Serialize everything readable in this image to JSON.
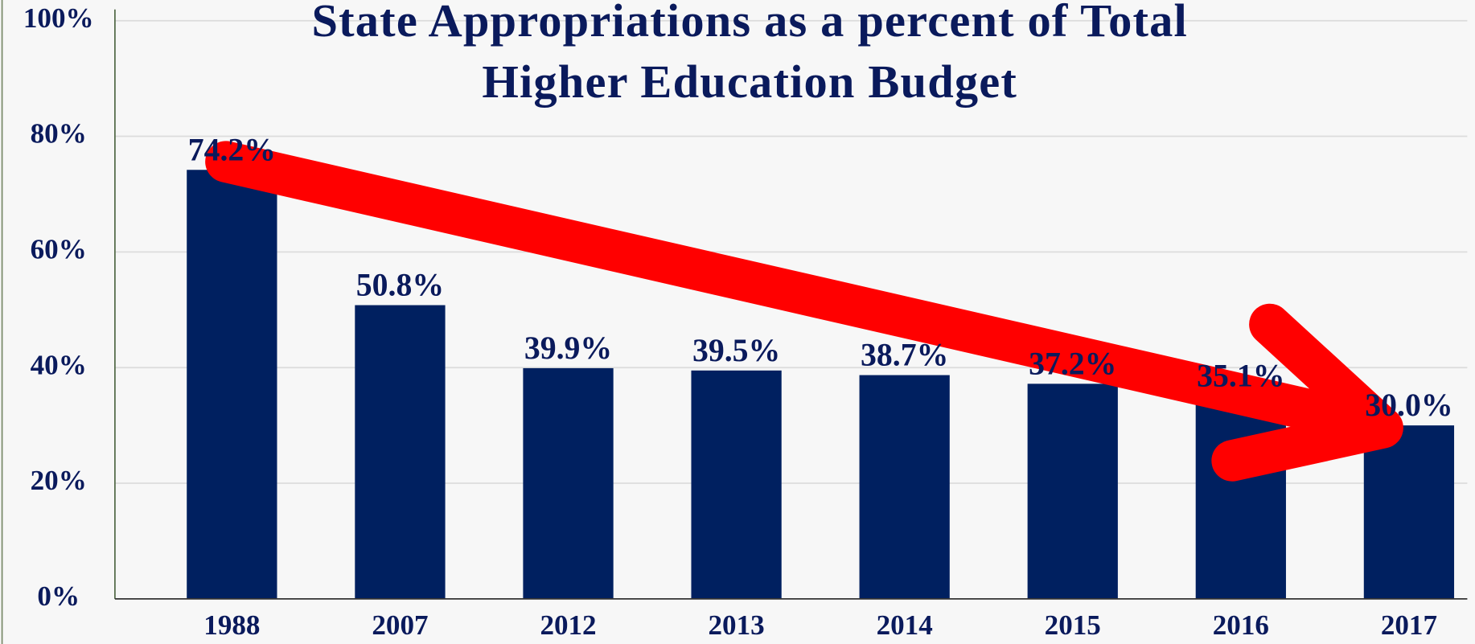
{
  "chart_data": {
    "type": "bar",
    "title": [
      "State Appropriations as a percent of Total",
      "Higher Education Budget"
    ],
    "categories": [
      "1988",
      "2007",
      "2012",
      "2013",
      "2014",
      "2015",
      "2016",
      "2017"
    ],
    "values": [
      74.2,
      50.8,
      39.9,
      39.5,
      38.7,
      37.2,
      35.1,
      30.0
    ],
    "value_labels": [
      "74.2%",
      "50.8%",
      "39.9%",
      "39.5%",
      "38.7%",
      "37.2%",
      "35.1%",
      "30.0%"
    ],
    "color": "#002060",
    "ylim": [
      0,
      100
    ],
    "yticks": [
      {
        "value": 0,
        "label": "0%"
      },
      {
        "value": 20,
        "label": "20%"
      },
      {
        "value": 40,
        "label": "40%"
      },
      {
        "value": 60,
        "label": "60%"
      },
      {
        "value": 80,
        "label": "80%"
      },
      {
        "value": 100,
        "label": "100%"
      }
    ],
    "grid": true
  }
}
